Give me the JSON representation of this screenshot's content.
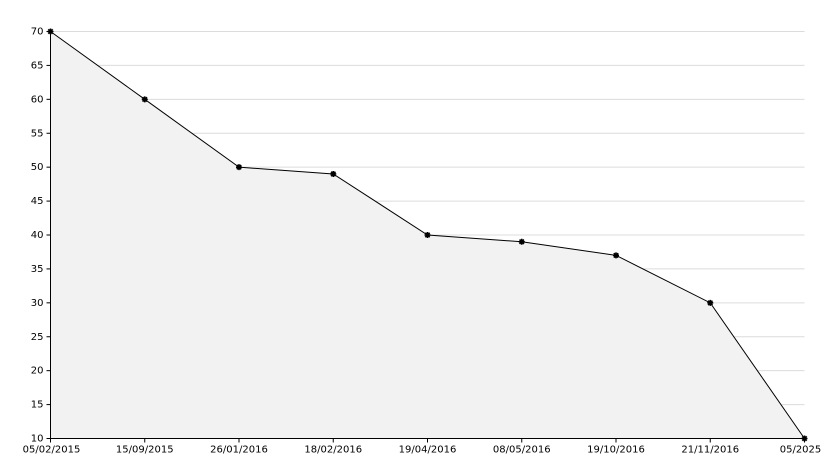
{
  "chart_data": {
    "type": "area",
    "categories": [
      "05/02/2015",
      "15/09/2015",
      "26/01/2016",
      "18/02/2016",
      "19/04/2016",
      "08/05/2016",
      "19/10/2016",
      "21/11/2016",
      "05/2025"
    ],
    "values": [
      70,
      60,
      50,
      49,
      40,
      39,
      37,
      30,
      10
    ],
    "color": "#000000",
    "fill": "#f2f2f2",
    "ylim": [
      10,
      70
    ],
    "yticks": [
      10,
      15,
      20,
      25,
      30,
      35,
      40,
      45,
      50,
      55,
      60,
      65,
      70
    ],
    "grid": true
  }
}
